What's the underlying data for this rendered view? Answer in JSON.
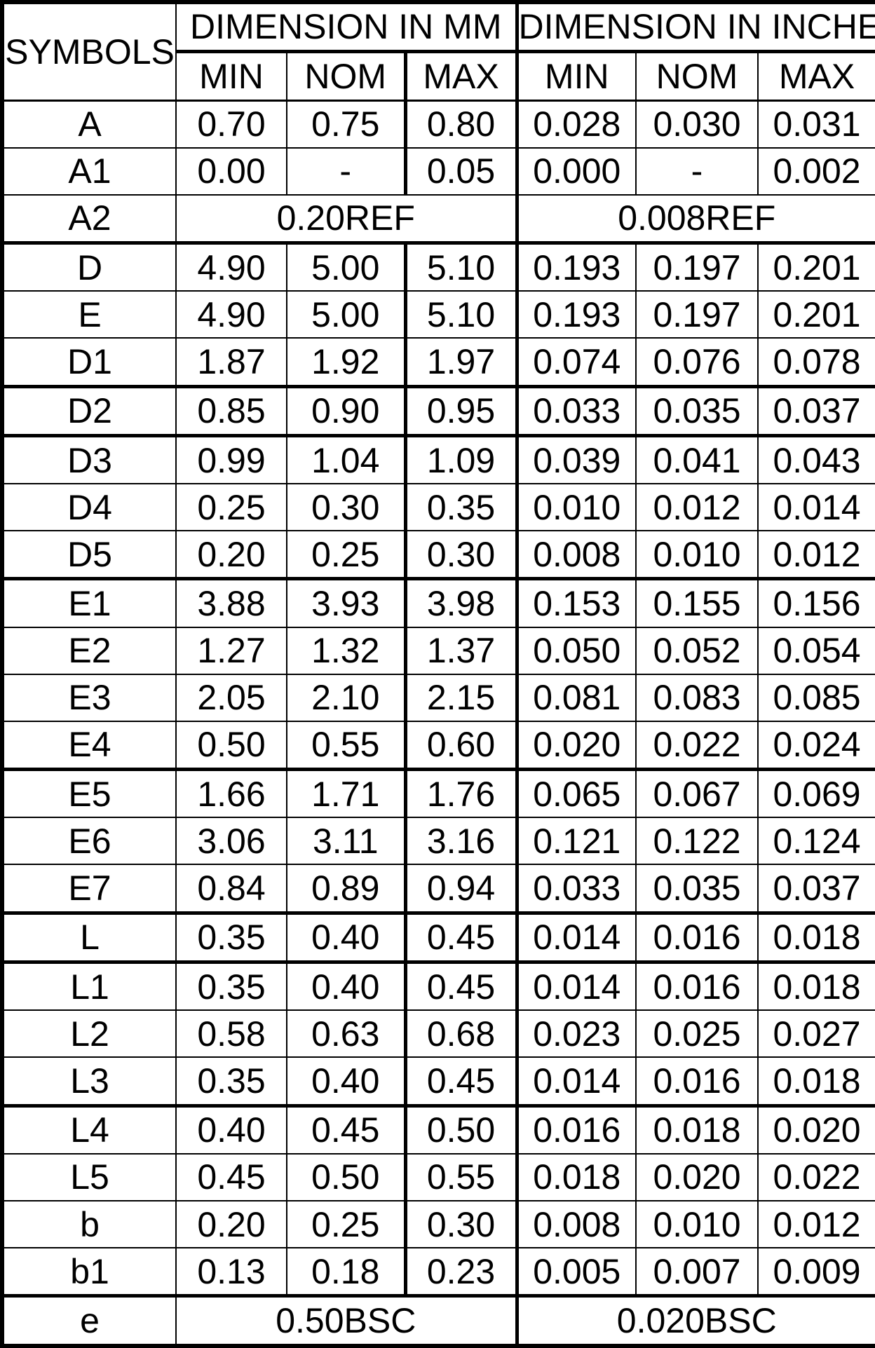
{
  "table": {
    "header": {
      "symbols_label": "SYMBOLS",
      "mm_group_label": "DIMENSION IN MM",
      "inch_group_label": "DIMENSION IN INCHES",
      "subcolumns": [
        "MIN",
        "NOM",
        "MAX",
        "MIN",
        "NOM",
        "MAX"
      ]
    },
    "rows": [
      {
        "symbol": "A",
        "mm": [
          "0.70",
          "0.75",
          "0.80"
        ],
        "inch": [
          "0.028",
          "0.030",
          "0.031"
        ],
        "thick_top": false
      },
      {
        "symbol": "A1",
        "mm": [
          "0.00",
          "-",
          "0.05"
        ],
        "inch": [
          "0.000",
          "-",
          "0.002"
        ],
        "thick_top": false
      },
      {
        "symbol": "A2",
        "mm_span": "0.20REF",
        "inch_span": "0.008REF",
        "thick_top": false
      },
      {
        "symbol": "D",
        "mm": [
          "4.90",
          "5.00",
          "5.10"
        ],
        "inch": [
          "0.193",
          "0.197",
          "0.201"
        ],
        "thick_top": true
      },
      {
        "symbol": "E",
        "mm": [
          "4.90",
          "5.00",
          "5.10"
        ],
        "inch": [
          "0.193",
          "0.197",
          "0.201"
        ],
        "thick_top": false
      },
      {
        "symbol": "D1",
        "mm": [
          "1.87",
          "1.92",
          "1.97"
        ],
        "inch": [
          "0.074",
          "0.076",
          "0.078"
        ],
        "thick_top": false
      },
      {
        "symbol": "D2",
        "mm": [
          "0.85",
          "0.90",
          "0.95"
        ],
        "inch": [
          "0.033",
          "0.035",
          "0.037"
        ],
        "thick_top": true
      },
      {
        "symbol": "D3",
        "mm": [
          "0.99",
          "1.04",
          "1.09"
        ],
        "inch": [
          "0.039",
          "0.041",
          "0.043"
        ],
        "thick_top": true
      },
      {
        "symbol": "D4",
        "mm": [
          "0.25",
          "0.30",
          "0.35"
        ],
        "inch": [
          "0.010",
          "0.012",
          "0.014"
        ],
        "thick_top": false
      },
      {
        "symbol": "D5",
        "mm": [
          "0.20",
          "0.25",
          "0.30"
        ],
        "inch": [
          "0.008",
          "0.010",
          "0.012"
        ],
        "thick_top": false
      },
      {
        "symbol": "E1",
        "mm": [
          "3.88",
          "3.93",
          "3.98"
        ],
        "inch": [
          "0.153",
          "0.155",
          "0.156"
        ],
        "thick_top": true
      },
      {
        "symbol": "E2",
        "mm": [
          "1.27",
          "1.32",
          "1.37"
        ],
        "inch": [
          "0.050",
          "0.052",
          "0.054"
        ],
        "thick_top": false
      },
      {
        "symbol": "E3",
        "mm": [
          "2.05",
          "2.10",
          "2.15"
        ],
        "inch": [
          "0.081",
          "0.083",
          "0.085"
        ],
        "thick_top": false
      },
      {
        "symbol": "E4",
        "mm": [
          "0.50",
          "0.55",
          "0.60"
        ],
        "inch": [
          "0.020",
          "0.022",
          "0.024"
        ],
        "thick_top": false
      },
      {
        "symbol": "E5",
        "mm": [
          "1.66",
          "1.71",
          "1.76"
        ],
        "inch": [
          "0.065",
          "0.067",
          "0.069"
        ],
        "thick_top": true
      },
      {
        "symbol": "E6",
        "mm": [
          "3.06",
          "3.11",
          "3.16"
        ],
        "inch": [
          "0.121",
          "0.122",
          "0.124"
        ],
        "thick_top": false
      },
      {
        "symbol": "E7",
        "mm": [
          "0.84",
          "0.89",
          "0.94"
        ],
        "inch": [
          "0.033",
          "0.035",
          "0.037"
        ],
        "thick_top": false
      },
      {
        "symbol": "L",
        "mm": [
          "0.35",
          "0.40",
          "0.45"
        ],
        "inch": [
          "0.014",
          "0.016",
          "0.018"
        ],
        "thick_top": true
      },
      {
        "symbol": "L1",
        "mm": [
          "0.35",
          "0.40",
          "0.45"
        ],
        "inch": [
          "0.014",
          "0.016",
          "0.018"
        ],
        "thick_top": true
      },
      {
        "symbol": "L2",
        "mm": [
          "0.58",
          "0.63",
          "0.68"
        ],
        "inch": [
          "0.023",
          "0.025",
          "0.027"
        ],
        "thick_top": false
      },
      {
        "symbol": "L3",
        "mm": [
          "0.35",
          "0.40",
          "0.45"
        ],
        "inch": [
          "0.014",
          "0.016",
          "0.018"
        ],
        "thick_top": false
      },
      {
        "symbol": "L4",
        "mm": [
          "0.40",
          "0.45",
          "0.50"
        ],
        "inch": [
          "0.016",
          "0.018",
          "0.020"
        ],
        "thick_top": true
      },
      {
        "symbol": "L5",
        "mm": [
          "0.45",
          "0.50",
          "0.55"
        ],
        "inch": [
          "0.018",
          "0.020",
          "0.022"
        ],
        "thick_top": false
      },
      {
        "symbol": "b",
        "mm": [
          "0.20",
          "0.25",
          "0.30"
        ],
        "inch": [
          "0.008",
          "0.010",
          "0.012"
        ],
        "thick_top": false
      },
      {
        "symbol": "b1",
        "mm": [
          "0.13",
          "0.18",
          "0.23"
        ],
        "inch": [
          "0.005",
          "0.007",
          "0.009"
        ],
        "thick_top": false
      },
      {
        "symbol": "e",
        "mm_span": "0.50BSC",
        "inch_span": "0.020BSC",
        "thick_top": true
      }
    ]
  }
}
